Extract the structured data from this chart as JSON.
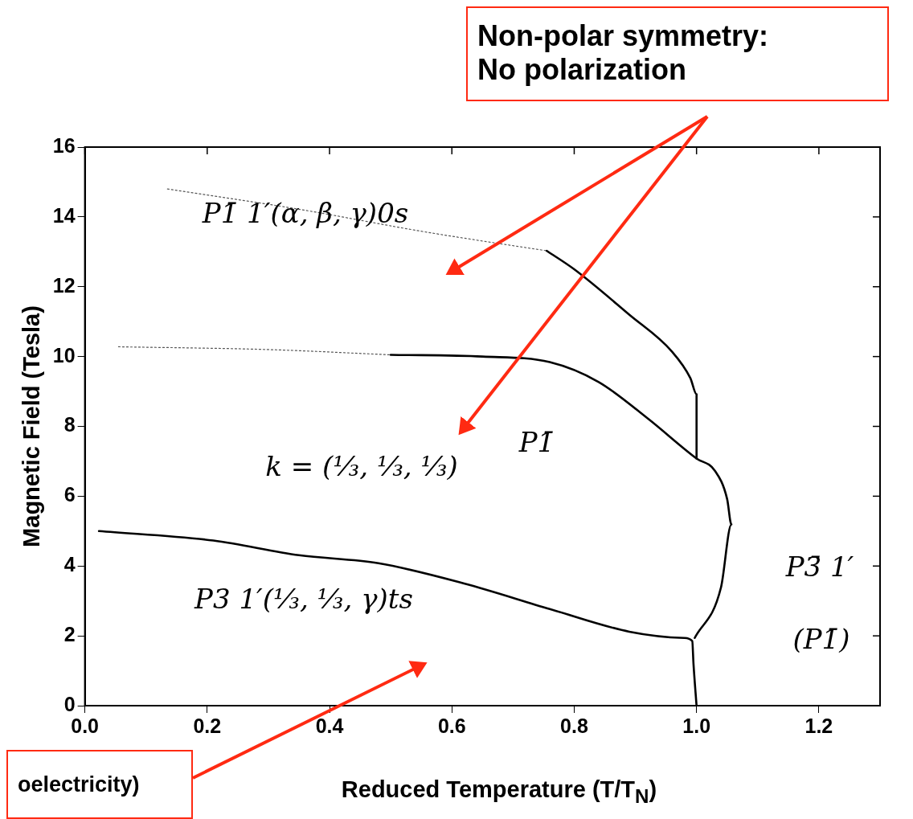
{
  "chart_data": {
    "type": "line",
    "xlabel": "Reduced Temperature (T/T$_{N}$)",
    "ylabel": "Magnetic Field (Tesla)",
    "xlim": [
      0,
      1.3
    ],
    "xticks": [
      {
        "value": 0,
        "label": "0.0"
      },
      {
        "value": 0.2,
        "label": "0.2"
      },
      {
        "value": 0.4,
        "label": "0.4"
      },
      {
        "value": 0.6,
        "label": "0.6"
      },
      {
        "value": 0.8,
        "label": "0.8"
      },
      {
        "value": 1,
        "label": "1.0"
      },
      {
        "value": 1.2,
        "label": "1.2"
      }
    ],
    "ylim": [
      0,
      16
    ],
    "yticks": [
      0,
      2,
      4,
      6,
      8,
      10,
      12,
      14,
      16
    ],
    "grid": false,
    "legend": false,
    "marker": "none",
    "series": [
      {
        "color": "#000000",
        "line_style": "solid",
        "x": [
          0.023,
          0.21,
          0.35,
          0.48,
          0.62,
          0.76,
          0.89,
          0.98,
          0.993,
          0.995,
          1.0
        ],
        "values": [
          5.0,
          4.73,
          4.31,
          4.08,
          3.5,
          2.77,
          2.12,
          1.94,
          1.85,
          1.2,
          0
        ]
      },
      {
        "color": "#000000",
        "line_style": "solid",
        "x": [
          0.997,
          1.04,
          1.057,
          1.05,
          1.03,
          1.0,
          0.92,
          0.84,
          0.76,
          0.65,
          0.5
        ],
        "values": [
          1.94,
          3.39,
          5.19,
          5.92,
          6.73,
          7.08,
          8.23,
          9.27,
          9.84,
          10.0,
          10.05
        ]
      },
      {
        "color": "#000000",
        "line_style": "solid",
        "x": [
          0.755,
          0.8,
          0.89,
          0.96,
          0.99,
          1.0,
          1.0
        ],
        "values": [
          13.03,
          12.5,
          11.2,
          10.14,
          9.38,
          8.92,
          7.08
        ]
      },
      {
        "color": "#555555",
        "line_style": "dotted",
        "x": [
          0.055,
          0.3,
          0.5
        ],
        "values": [
          10.28,
          10.2,
          10.05
        ]
      },
      {
        "color": "#555555",
        "line_style": "dotted",
        "x": [
          0.135,
          0.35,
          0.553,
          0.755
        ],
        "values": [
          14.8,
          14.22,
          13.58,
          13.03
        ]
      }
    ],
    "annotations": [
      "Non-polar symmetry: No polarization",
      "oelectricity)",
      "P1̄ 1′(α, β, γ)0s",
      "P1̄",
      "k = (⅓, ⅓, ⅓)",
      "P3 1′(⅓, ⅓, γ)ts",
      "P3̄ 1′",
      "(P1̄)"
    ]
  }
}
